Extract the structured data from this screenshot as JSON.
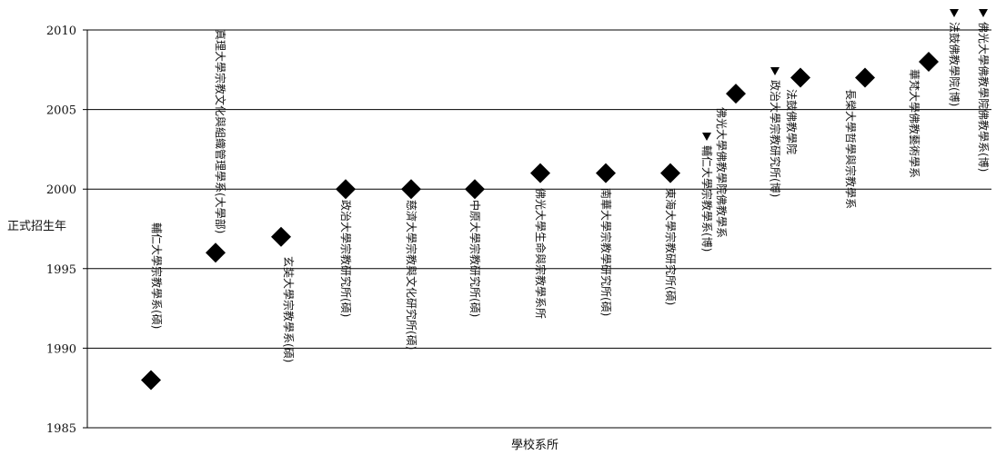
{
  "chart_data": {
    "type": "scatter",
    "title": "",
    "xlabel": "學校系所",
    "ylabel": "正式招生年",
    "ylim": [
      1985,
      2010
    ],
    "yticks": [
      1985,
      1990,
      1995,
      2000,
      2005,
      2010
    ],
    "grid": true,
    "marker": "diamond",
    "marker_color": "#000000",
    "points": [
      {
        "label": "輔仁大學宗教學系(碩)",
        "y": 1988
      },
      {
        "label": "真理大學宗教文化與組織管理學系(大學部)",
        "y": 1996
      },
      {
        "label": "玄奘大學宗教學系(碩)",
        "y": 1997
      },
      {
        "label": "政治大學宗教研究所(碩)",
        "y": 2000
      },
      {
        "label": "慈濟大學宗教與文化研究所(碩)",
        "y": 2000
      },
      {
        "label": "中原大學宗教研究所(碩)",
        "y": 2000
      },
      {
        "label": "佛光大學生命與宗教學系所",
        "y": 2001
      },
      {
        "label": "南華大學宗教學研究所(碩)",
        "y": 2001
      },
      {
        "label": "東海大學宗教研究所(碩)",
        "y": 2001
      },
      {
        "label": "輔仁大學宗教學系(博)",
        "y": null,
        "arrow": true
      },
      {
        "label": "佛光大學佛教學院佛教學系",
        "y": 2006
      },
      {
        "label": "政治大學宗教研究所(博)",
        "y": null,
        "arrow": true
      },
      {
        "label": "法鼓佛教學院",
        "y": 2007
      },
      {
        "label": "長榮大學哲學與宗教學系",
        "y": 2007
      },
      {
        "label": "華梵大學佛教藝術學系",
        "y": 2008
      },
      {
        "label": "法鼓佛教學院(博)",
        "y": null,
        "arrow": true
      },
      {
        "label": "佛光大學佛教學院佛教學系(博)",
        "y": null,
        "arrow": true
      }
    ]
  }
}
